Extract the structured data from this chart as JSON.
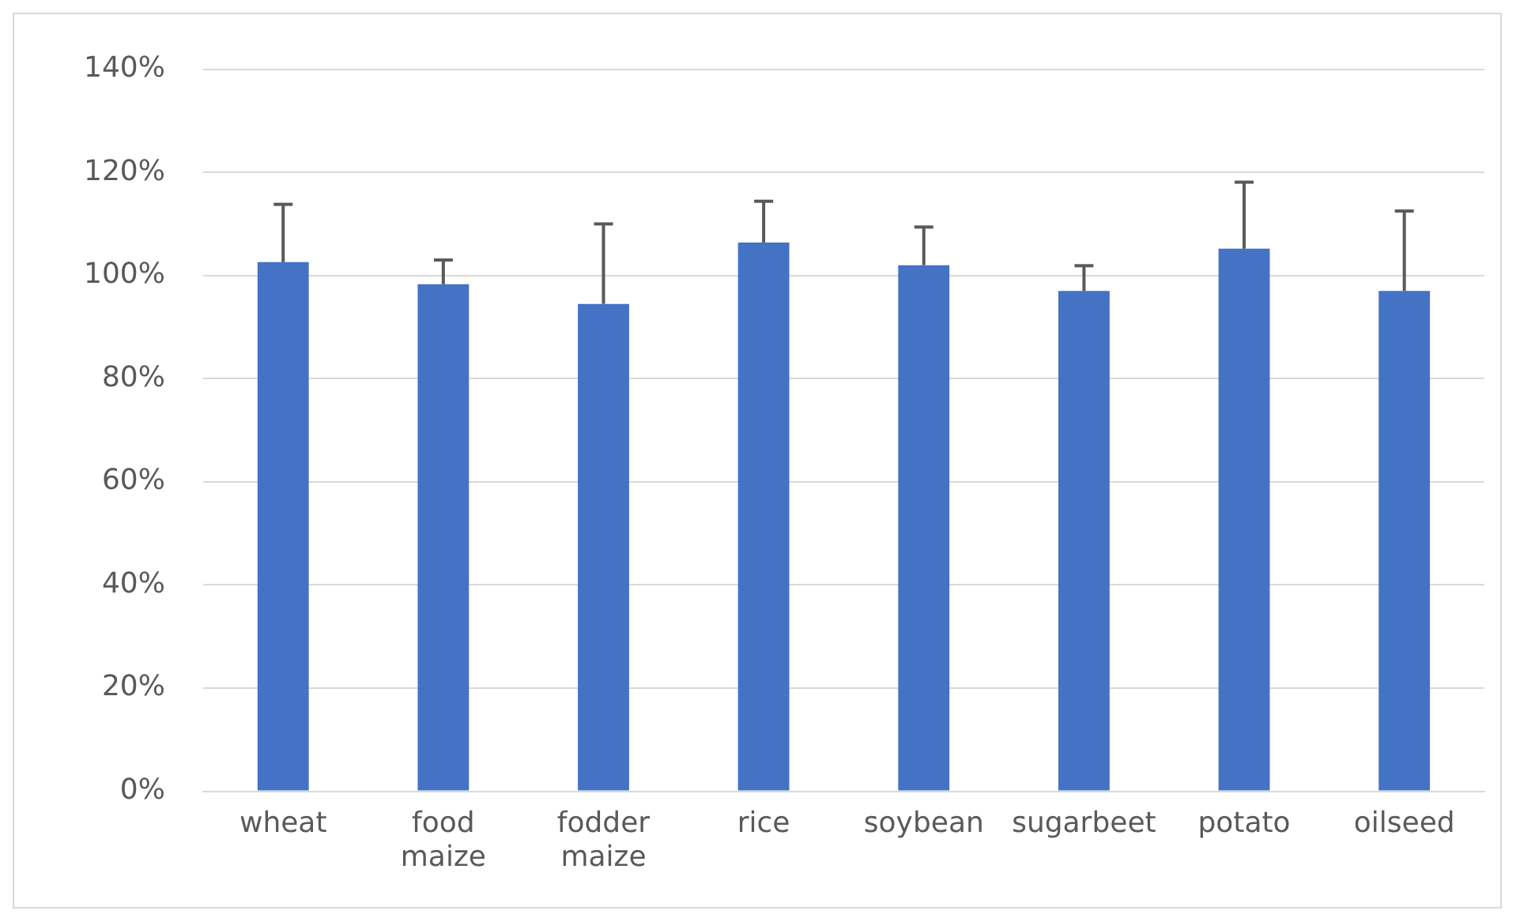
{
  "chart_data": {
    "type": "bar",
    "categories": [
      "wheat",
      "food maize",
      "fodder maize",
      "rice",
      "soybean",
      "sugarbeet",
      "potato",
      "oilseed"
    ],
    "values": [
      102.6,
      98.3,
      94.5,
      106.4,
      102,
      97,
      105.2,
      97
    ],
    "errors": [
      [
        102.6,
        113.8
      ],
      [
        98.3,
        103
      ],
      [
        94.5,
        110
      ],
      [
        106.4,
        114.4
      ],
      [
        102,
        109.4
      ],
      [
        97,
        101.9
      ],
      [
        105.2,
        118.1
      ],
      [
        97,
        112.5
      ]
    ],
    "color": "#4472c4",
    "ylim": [
      0,
      140
    ],
    "yticks": [
      {
        "value": 0,
        "label": "0%"
      },
      {
        "value": 20,
        "label": "20%"
      },
      {
        "value": 40,
        "label": "40%"
      },
      {
        "value": 60,
        "label": "60%"
      },
      {
        "value": 80,
        "label": "80%"
      },
      {
        "value": 100,
        "label": "100%"
      },
      {
        "value": 120,
        "label": "120%"
      },
      {
        "value": 140,
        "label": "140%"
      }
    ],
    "grid": "y",
    "legend": false
  }
}
